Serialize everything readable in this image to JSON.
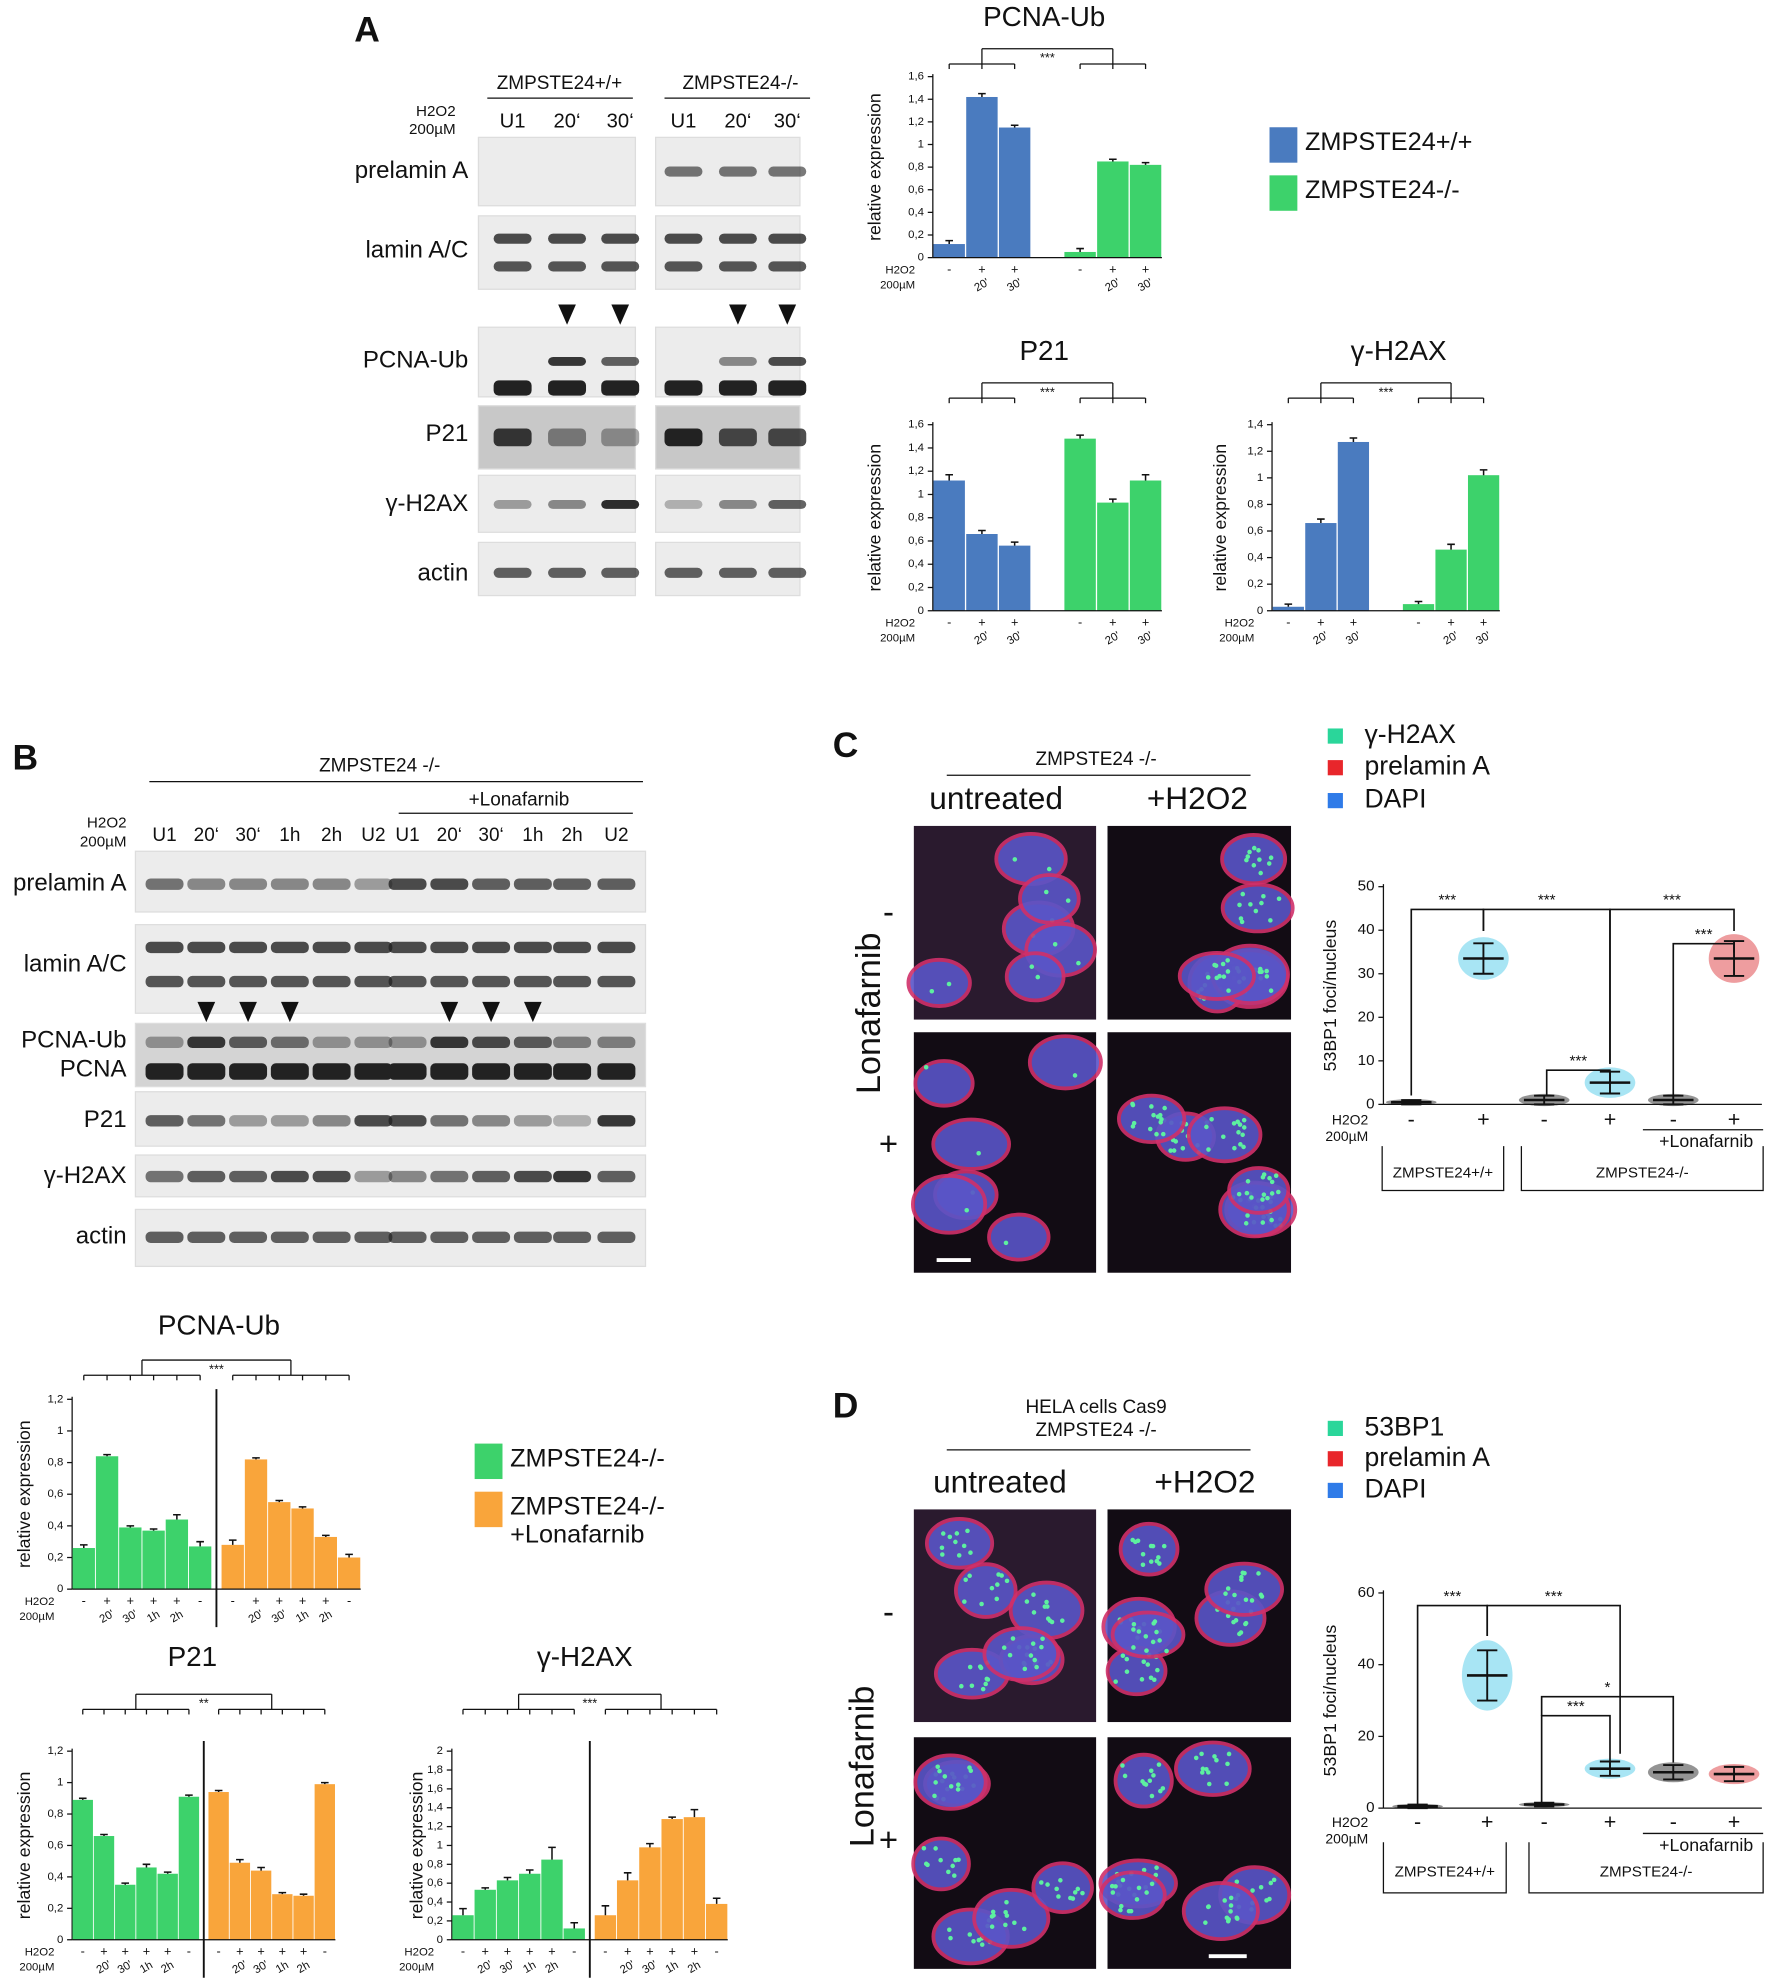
{
  "panels": {
    "A": {
      "letter": "A",
      "genotypes": [
        "ZMPSTE24+/+",
        "ZMPSTE24-/-"
      ],
      "treatment": [
        "H2O2",
        "200µM"
      ],
      "lanes": [
        "U1",
        "20‘",
        "30‘",
        "U1",
        "20‘",
        "30‘"
      ],
      "rows": [
        "prelamin A",
        "lamin A/C",
        "PCNA-Ub",
        "P21",
        "γ-H2AX",
        "actin"
      ]
    },
    "B": {
      "letter": "B",
      "genotype": "ZMPSTE24 -/-",
      "drug": "+Lonafarnib",
      "treatment": [
        "H2O2",
        "200µM"
      ],
      "lanes": [
        "U1",
        "20‘",
        "30‘",
        "1h",
        "2h",
        "U2",
        "U1",
        "20‘",
        "30‘",
        "1h",
        "2h",
        "U2"
      ],
      "rows": [
        "prelamin A",
        "lamin A/C",
        "PCNA-Ub",
        "PCNA",
        "P21",
        "γ-H2AX",
        "actin"
      ]
    },
    "C": {
      "letter": "C",
      "header": [
        "ZMPSTE24 -/-"
      ],
      "conditions": [
        "untreated",
        "+H2O2"
      ],
      "drug": "Lonafarnib",
      "drug_states": [
        "-",
        "+"
      ],
      "legend": [
        {
          "label": "γ-H2AX",
          "color": "#2ad69a"
        },
        {
          "label": "prelamin A",
          "color": "#e8262b"
        },
        {
          "label": "DAPI",
          "color": "#2f7be8"
        }
      ]
    },
    "D": {
      "letter": "D",
      "header": [
        "HELA cells Cas9",
        "ZMPSTE24 -/-"
      ],
      "conditions": [
        "untreated",
        "+H2O2"
      ],
      "drug": "Lonafarnib",
      "drug_states": [
        "-",
        "+"
      ],
      "legend": [
        {
          "label": "53BP1",
          "color": "#2ad69a"
        },
        {
          "label": "prelamin A",
          "color": "#e8262b"
        },
        {
          "label": "DAPI",
          "color": "#2f7be8"
        }
      ]
    }
  },
  "chart_data": [
    {
      "type": "bar",
      "title": "PCNA-Ub",
      "y_label": "relative expression",
      "x_row_labels": [
        "H2O2",
        "200µM"
      ],
      "x_signs": [
        "-",
        "+",
        "+",
        "-",
        "+",
        "+"
      ],
      "categories": [
        null,
        "20'",
        "30'",
        null,
        "20'",
        "30'"
      ],
      "series": [
        {
          "name": "ZMPSTE24+/+",
          "color": "#4a7bbf",
          "values": [
            0.12,
            1.42,
            1.15,
            null,
            null,
            null
          ],
          "errors": [
            0.03,
            0.03,
            0.02,
            null,
            null,
            null
          ]
        },
        {
          "name": "ZMPSTE24-/-",
          "color": "#3dd26b",
          "values": [
            null,
            null,
            null,
            0.05,
            0.85,
            0.82
          ],
          "errors": [
            null,
            null,
            null,
            0.03,
            0.02,
            0.02
          ]
        }
      ],
      "ylim": [
        0,
        1.6
      ],
      "yticks": [
        0,
        {
          "value": 0.2,
          "label": "0,2"
        },
        {
          "value": 0.4,
          "label": "0,4"
        },
        {
          "value": 0.6,
          "label": "0,6"
        },
        {
          "value": 0.8,
          "label": "0,8"
        },
        1,
        {
          "value": 1.2,
          "label": "1,2"
        },
        {
          "value": 1.4,
          "label": "1,4"
        },
        {
          "value": 1.6,
          "label": "1,6"
        }
      ],
      "significance": "***",
      "legend": true,
      "divider": false
    },
    {
      "type": "bar",
      "title": "P21",
      "y_label": "relative expression",
      "x_row_labels": [
        "H2O2",
        "200µM"
      ],
      "x_signs": [
        "-",
        "+",
        "+",
        "-",
        "+",
        "+"
      ],
      "categories": [
        null,
        "20'",
        "30'",
        null,
        "20'",
        "30'"
      ],
      "series": [
        {
          "color": "#4a7bbf",
          "values": [
            1.12,
            0.66,
            0.56,
            null,
            null,
            null
          ],
          "errors": [
            0.05,
            0.03,
            0.03,
            null,
            null,
            null
          ]
        },
        {
          "color": "#3dd26b",
          "values": [
            null,
            null,
            null,
            1.48,
            0.93,
            1.12
          ],
          "errors": [
            null,
            null,
            null,
            0.03,
            0.03,
            0.05
          ]
        }
      ],
      "ylim": [
        0,
        1.6
      ],
      "yticks": [
        0,
        {
          "value": 0.2,
          "label": "0,2"
        },
        {
          "value": 0.4,
          "label": "0,4"
        },
        {
          "value": 0.6,
          "label": "0,6"
        },
        {
          "value": 0.8,
          "label": "0,8"
        },
        1,
        {
          "value": 1.2,
          "label": "1,2"
        },
        {
          "value": 1.4,
          "label": "1,4"
        },
        {
          "value": 1.6,
          "label": "1,6"
        }
      ],
      "significance": "***",
      "legend": false,
      "divider": false
    },
    {
      "type": "bar",
      "title": "γ-H2AX",
      "y_label": "relative expression",
      "x_row_labels": [
        "H2O2",
        "200µM"
      ],
      "x_signs": [
        "-",
        "+",
        "+",
        "-",
        "+",
        "+"
      ],
      "categories": [
        null,
        "20'",
        "30'",
        null,
        "20'",
        "30'"
      ],
      "series": [
        {
          "color": "#4a7bbf",
          "values": [
            0.03,
            0.66,
            1.27,
            null,
            null,
            null
          ],
          "errors": [
            0.02,
            0.03,
            0.03,
            null,
            null,
            null
          ]
        },
        {
          "color": "#3dd26b",
          "values": [
            null,
            null,
            null,
            0.05,
            0.46,
            1.02
          ],
          "errors": [
            null,
            null,
            null,
            0.02,
            0.04,
            0.04
          ]
        }
      ],
      "ylim": [
        0,
        1.4
      ],
      "yticks": [
        0,
        {
          "value": 0.2,
          "label": "0,2"
        },
        {
          "value": 0.4,
          "label": "0,4"
        },
        {
          "value": 0.6,
          "label": "0,6"
        },
        {
          "value": 0.8,
          "label": "0,8"
        },
        1,
        {
          "value": 1.2,
          "label": "1,2"
        },
        {
          "value": 1.4,
          "label": "1,4"
        }
      ],
      "significance": "***",
      "legend": false,
      "divider": false
    },
    {
      "type": "bar",
      "title": "PCNA-Ub",
      "y_label": "relative expression",
      "x_row_labels": [
        "H2O2",
        "200µM"
      ],
      "x_signs": [
        "-",
        "+",
        "+",
        "+",
        "+",
        "-",
        "-",
        "+",
        "+",
        "+",
        "+",
        "-"
      ],
      "categories": [
        null,
        "20'",
        "30'",
        "1h",
        "2h",
        null,
        null,
        "20'",
        "30'",
        "1h",
        "2h",
        null
      ],
      "series": [
        {
          "name": "ZMPSTE24-/-",
          "color": "#3dd26b",
          "values": [
            0.26,
            0.84,
            0.39,
            0.37,
            0.44,
            0.27,
            null,
            null,
            null,
            null,
            null,
            null
          ],
          "errors": [
            0.02,
            0.01,
            0.01,
            0.01,
            0.03,
            0.03,
            null,
            null,
            null,
            null,
            null,
            null
          ]
        },
        {
          "name": "ZMPSTE24-/- +Lonafarnib",
          "color": "#f9a53b",
          "values": [
            null,
            null,
            null,
            null,
            null,
            null,
            0.28,
            0.82,
            0.55,
            0.51,
            0.33,
            0.2
          ],
          "errors": [
            null,
            null,
            null,
            null,
            null,
            null,
            0.03,
            0.01,
            0.01,
            0.01,
            0.01,
            0.02
          ]
        }
      ],
      "ylim": [
        0,
        1.2
      ],
      "yticks": [
        0,
        {
          "value": 0.2,
          "label": "0,2"
        },
        {
          "value": 0.4,
          "label": "0,4"
        },
        {
          "value": 0.6,
          "label": "0,6"
        },
        {
          "value": 0.8,
          "label": "0,8"
        },
        1,
        {
          "value": 1.2,
          "label": "1,2"
        }
      ],
      "significance": "***",
      "legend": true,
      "divider": true
    },
    {
      "type": "bar",
      "title": "P21",
      "y_label": "relative expression",
      "x_row_labels": [
        "H2O2",
        "200µM"
      ],
      "x_signs": [
        "-",
        "+",
        "+",
        "+",
        "+",
        "-",
        "-",
        "+",
        "+",
        "+",
        "+",
        "-"
      ],
      "categories": [
        null,
        "20'",
        "30'",
        "1h",
        "2h",
        null,
        null,
        "20'",
        "30'",
        "1h",
        "2h",
        null
      ],
      "series": [
        {
          "color": "#3dd26b",
          "values": [
            0.89,
            0.66,
            0.35,
            0.46,
            0.42,
            0.91,
            null,
            null,
            null,
            null,
            null,
            null
          ],
          "errors": [
            0.01,
            0.01,
            0.01,
            0.02,
            0.01,
            0.01,
            null,
            null,
            null,
            null,
            null,
            null
          ]
        },
        {
          "color": "#f9a53b",
          "values": [
            null,
            null,
            null,
            null,
            null,
            null,
            0.94,
            0.49,
            0.44,
            0.29,
            0.28,
            0.99
          ],
          "errors": [
            null,
            null,
            null,
            null,
            null,
            null,
            0.01,
            0.02,
            0.02,
            0.01,
            0.01,
            0.01
          ]
        }
      ],
      "ylim": [
        0,
        1.2
      ],
      "yticks": [
        0,
        {
          "value": 0.2,
          "label": "0,2"
        },
        {
          "value": 0.4,
          "label": "0,4"
        },
        {
          "value": 0.6,
          "label": "0,6"
        },
        {
          "value": 0.8,
          "label": "0,8"
        },
        1,
        {
          "value": 1.2,
          "label": "1,2"
        }
      ],
      "significance": "**",
      "legend": false,
      "divider": true
    },
    {
      "type": "bar",
      "title": "γ-H2AX",
      "y_label": "relative expression",
      "x_row_labels": [
        "H2O2",
        "200µM"
      ],
      "x_signs": [
        "-",
        "+",
        "+",
        "+",
        "+",
        "-",
        "-",
        "+",
        "+",
        "+",
        "+",
        "-"
      ],
      "categories": [
        null,
        "20'",
        "30'",
        "1h",
        "2h",
        null,
        null,
        "20'",
        "30'",
        "1h",
        "2h",
        null
      ],
      "series": [
        {
          "color": "#3dd26b",
          "values": [
            0.26,
            0.53,
            0.63,
            0.7,
            0.85,
            0.12,
            null,
            null,
            null,
            null,
            null,
            null
          ],
          "errors": [
            0.07,
            0.02,
            0.03,
            0.04,
            0.13,
            0.06,
            null,
            null,
            null,
            null,
            null,
            null
          ]
        },
        {
          "color": "#f9a53b",
          "values": [
            null,
            null,
            null,
            null,
            null,
            null,
            0.26,
            0.63,
            0.98,
            1.28,
            1.3,
            0.38
          ],
          "errors": [
            null,
            null,
            null,
            null,
            null,
            null,
            0.1,
            0.08,
            0.04,
            0.02,
            0.08,
            0.06
          ]
        }
      ],
      "ylim": [
        0,
        2
      ],
      "yticks": [
        0,
        {
          "value": 0.2,
          "label": "0,2"
        },
        {
          "value": 0.4,
          "label": "0,4"
        },
        {
          "value": 0.6,
          "label": "0,6"
        },
        {
          "value": 0.8,
          "label": "0,8"
        },
        1,
        {
          "value": 1.2,
          "label": "1,2"
        },
        {
          "value": 1.4,
          "label": "1,4"
        },
        {
          "value": 1.6,
          "label": "1,6"
        },
        {
          "value": 1.8,
          "label": "1,8"
        },
        2
      ],
      "significance": "***",
      "legend": false,
      "divider": true
    },
    {
      "type": "dot",
      "y_label": "53BP1 foci/nucleus",
      "x_row_labels": [
        "H2O2",
        "200µM"
      ],
      "x_signs": [
        "-",
        "+",
        "-",
        "+",
        "-",
        "+"
      ],
      "treatment_label": "+Lonafarnib",
      "groups": [
        "ZMPSTE24+/+",
        "ZMPSTE24-/-"
      ],
      "colors": [
        "#111111",
        "#3fc6e6",
        "#111111",
        "#3fc6e6",
        "#111111",
        "#d9262b"
      ],
      "means": [
        0.5,
        33.5,
        1,
        5,
        1,
        33.5
      ],
      "sds": [
        0.5,
        3.5,
        1,
        2.5,
        1,
        4
      ],
      "ylim": [
        0,
        50
      ],
      "yticks": [
        0,
        10,
        20,
        30,
        40,
        50
      ],
      "significance": [
        "***",
        "***",
        "***",
        "***",
        "***"
      ]
    },
    {
      "type": "dot",
      "y_label": "53BP1 foci/nucleus",
      "x_row_labels": [
        "H2O2",
        "200µM"
      ],
      "x_signs": [
        "-",
        "+",
        "-",
        "+",
        "-",
        "+"
      ],
      "treatment_label": "+Lonafarnib",
      "groups": [
        "ZMPSTE24+/+",
        "ZMPSTE24-/-"
      ],
      "colors": [
        "#111111",
        "#3fc6e6",
        "#111111",
        "#3fc6e6",
        "#111111",
        "#d9262b"
      ],
      "means": [
        0.5,
        37,
        1,
        11,
        10,
        9.5
      ],
      "sds": [
        0.5,
        7,
        0.5,
        2,
        2,
        2
      ],
      "ylim": [
        0,
        60
      ],
      "yticks": [
        0,
        20,
        40,
        60
      ],
      "significance": [
        "***",
        "***",
        "***",
        "*"
      ]
    }
  ]
}
